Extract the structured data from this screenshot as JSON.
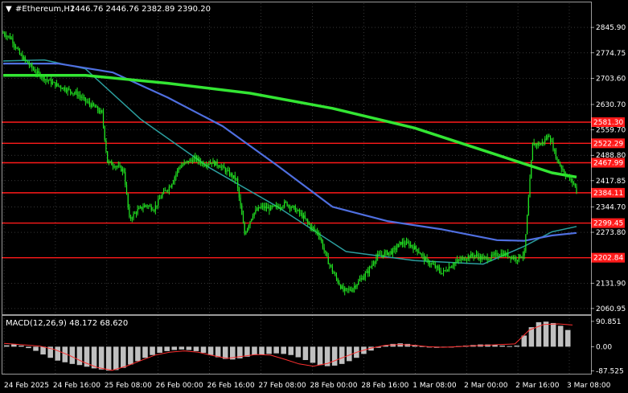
{
  "header": {
    "symbol": "#Ethereum,H1",
    "ohlc": "2446.76 2446.76 2382.89 2390.20"
  },
  "macd_header": "MACD(12,26,9) 48.172 68.620",
  "colors": {
    "background": "#000000",
    "grid": "#5a5a5a",
    "candle": "#22e622",
    "ma_slow": "#33e633",
    "ma_mid": "#4f6fe0",
    "ma_fast": "#2b9e9e",
    "level": "#ff1a1a",
    "level_label_bg": "#ff1a1a",
    "macd_hist": "#c0c0c0",
    "macd_signal": "#ff3030"
  },
  "chart_data": {
    "type": "candlestick",
    "price_axis": {
      "ticks": [
        "2845.90",
        "2774.75",
        "2703.60",
        "2630.70",
        "2559.70",
        "2488.80",
        "2417.85",
        "2344.70",
        "2273.80",
        "2131.90",
        "2060.95"
      ],
      "ylim": [
        2045,
        2882
      ]
    },
    "time_axis": {
      "labels": [
        "24 Feb 2025",
        "24 Feb 16:00",
        "25 Feb 08:00",
        "26 Feb 00:00",
        "26 Feb 16:00",
        "27 Feb 08:00",
        "28 Feb 00:00",
        "28 Feb 16:00",
        "1 Mar 08:00",
        "2 Mar 00:00",
        "2 Mar 16:00",
        "3 Mar 08:00"
      ]
    },
    "levels": [
      {
        "value": 2581.3,
        "label": "2581.30"
      },
      {
        "value": 2522.29,
        "label": "2522.29"
      },
      {
        "value": 2467.99,
        "label": "2467.99"
      },
      {
        "value": 2384.11,
        "label": "2384.11"
      },
      {
        "value": 2299.45,
        "label": "2299.45"
      },
      {
        "value": 2202.84,
        "label": "2202.84"
      }
    ],
    "price_path": [
      [
        0,
        2830
      ],
      [
        6,
        2815
      ],
      [
        12,
        2770
      ],
      [
        18,
        2745
      ],
      [
        24,
        2720
      ],
      [
        30,
        2705
      ],
      [
        36,
        2690
      ],
      [
        42,
        2680
      ],
      [
        48,
        2670
      ],
      [
        54,
        2660
      ],
      [
        60,
        2640
      ],
      [
        66,
        2625
      ],
      [
        72,
        2605
      ],
      [
        76,
        2470
      ],
      [
        82,
        2460
      ],
      [
        88,
        2445
      ],
      [
        92,
        2310
      ],
      [
        98,
        2335
      ],
      [
        104,
        2350
      ],
      [
        110,
        2340
      ],
      [
        116,
        2380
      ],
      [
        122,
        2405
      ],
      [
        128,
        2455
      ],
      [
        134,
        2470
      ],
      [
        140,
        2480
      ],
      [
        146,
        2465
      ],
      [
        152,
        2470
      ],
      [
        158,
        2460
      ],
      [
        164,
        2440
      ],
      [
        170,
        2420
      ],
      [
        176,
        2270
      ],
      [
        182,
        2325
      ],
      [
        188,
        2345
      ],
      [
        194,
        2340
      ],
      [
        200,
        2345
      ],
      [
        206,
        2355
      ],
      [
        212,
        2340
      ],
      [
        218,
        2320
      ],
      [
        224,
        2290
      ],
      [
        230,
        2270
      ],
      [
        236,
        2200
      ],
      [
        242,
        2150
      ],
      [
        248,
        2110
      ],
      [
        254,
        2115
      ],
      [
        260,
        2140
      ],
      [
        266,
        2165
      ],
      [
        272,
        2205
      ],
      [
        278,
        2215
      ],
      [
        284,
        2220
      ],
      [
        290,
        2245
      ],
      [
        296,
        2240
      ],
      [
        302,
        2225
      ],
      [
        308,
        2195
      ],
      [
        314,
        2180
      ],
      [
        320,
        2160
      ],
      [
        326,
        2180
      ],
      [
        332,
        2195
      ],
      [
        338,
        2205
      ],
      [
        344,
        2210
      ],
      [
        350,
        2200
      ],
      [
        356,
        2205
      ],
      [
        362,
        2215
      ],
      [
        368,
        2210
      ],
      [
        374,
        2200
      ],
      [
        380,
        2215
      ],
      [
        386,
        2520
      ],
      [
        392,
        2520
      ],
      [
        398,
        2545
      ],
      [
        404,
        2475
      ],
      [
        410,
        2435
      ],
      [
        416,
        2410
      ],
      [
        418,
        2390
      ]
    ],
    "ma_slow": [
      [
        0,
        2712
      ],
      [
        60,
        2712
      ],
      [
        120,
        2690
      ],
      [
        180,
        2662
      ],
      [
        240,
        2620
      ],
      [
        300,
        2565
      ],
      [
        360,
        2490
      ],
      [
        400,
        2440
      ],
      [
        418,
        2428
      ]
    ],
    "ma_mid": [
      [
        0,
        2745
      ],
      [
        40,
        2745
      ],
      [
        80,
        2720
      ],
      [
        120,
        2650
      ],
      [
        160,
        2570
      ],
      [
        200,
        2460
      ],
      [
        240,
        2345
      ],
      [
        280,
        2305
      ],
      [
        320,
        2282
      ],
      [
        360,
        2252
      ],
      [
        380,
        2250
      ],
      [
        400,
        2265
      ],
      [
        418,
        2272
      ]
    ],
    "ma_fast": [
      [
        0,
        2752
      ],
      [
        30,
        2755
      ],
      [
        60,
        2730
      ],
      [
        100,
        2590
      ],
      [
        150,
        2455
      ],
      [
        200,
        2345
      ],
      [
        250,
        2220
      ],
      [
        300,
        2195
      ],
      [
        350,
        2185
      ],
      [
        380,
        2235
      ],
      [
        400,
        2275
      ],
      [
        418,
        2290
      ]
    ],
    "macd": {
      "ticks": [
        "90.851",
        "0.00",
        "-87.525"
      ],
      "ylim": [
        -100,
        105
      ],
      "histogram": [
        5,
        8,
        4,
        -5,
        -15,
        -28,
        -40,
        -50,
        -56,
        -62,
        -66,
        -72,
        -78,
        -82,
        -86,
        -84,
        -76,
        -64,
        -52,
        -40,
        -30,
        -22,
        -16,
        -12,
        -10,
        -12,
        -16,
        -22,
        -30,
        -38,
        -44,
        -46,
        -42,
        -36,
        -30,
        -28,
        -26,
        -24,
        -26,
        -30,
        -38,
        -48,
        -58,
        -66,
        -70,
        -68,
        -62,
        -52,
        -40,
        -26,
        -14,
        -4,
        4,
        10,
        12,
        10,
        6,
        2,
        -2,
        -4,
        -2,
        0,
        2,
        4,
        6,
        8,
        8,
        6,
        4,
        2,
        4,
        40,
        70,
        88,
        90,
        85,
        75,
        60
      ],
      "signal": [
        [
          0,
          12
        ],
        [
          6,
          6
        ],
        [
          10,
          2
        ],
        [
          14,
          -10
        ],
        [
          18,
          -30
        ],
        [
          22,
          -55
        ],
        [
          26,
          -75
        ],
        [
          30,
          -85
        ],
        [
          34,
          -70
        ],
        [
          38,
          -50
        ],
        [
          42,
          -30
        ],
        [
          46,
          -20
        ],
        [
          50,
          -15
        ],
        [
          54,
          -20
        ],
        [
          58,
          -32
        ],
        [
          62,
          -42
        ],
        [
          66,
          -35
        ],
        [
          70,
          -28
        ],
        [
          74,
          -30
        ],
        [
          78,
          -45
        ],
        [
          82,
          -62
        ],
        [
          86,
          -70
        ],
        [
          90,
          -60
        ],
        [
          94,
          -40
        ],
        [
          98,
          -20
        ],
        [
          102,
          -5
        ],
        [
          106,
          5
        ],
        [
          110,
          8
        ],
        [
          114,
          5
        ],
        [
          118,
          0
        ],
        [
          122,
          -2
        ],
        [
          126,
          0
        ],
        [
          130,
          3
        ],
        [
          134,
          5
        ],
        [
          138,
          8
        ],
        [
          142,
          10
        ],
        [
          146,
          60
        ],
        [
          150,
          80
        ],
        [
          154,
          82
        ],
        [
          158,
          78
        ]
      ]
    }
  }
}
